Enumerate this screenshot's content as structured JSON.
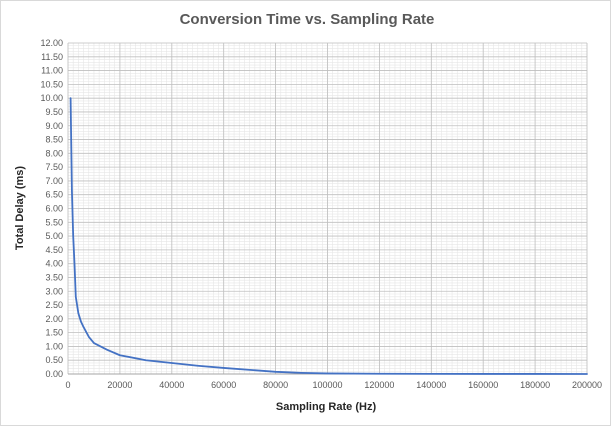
{
  "chart_data": {
    "type": "line",
    "title": "Conversion Time vs. Sampling Rate",
    "xlabel": "Sampling Rate (Hz)",
    "ylabel": "Total Delay (ms)",
    "xlim": [
      0,
      200000
    ],
    "ylim": [
      0,
      12
    ],
    "x_ticks": [
      0,
      20000,
      40000,
      60000,
      80000,
      100000,
      120000,
      140000,
      160000,
      180000,
      200000
    ],
    "x_tick_labels": [
      "0",
      "20000",
      "40000",
      "60000",
      "80000",
      "100000",
      "120000",
      "140000",
      "160000",
      "180000",
      "200000"
    ],
    "y_ticks": [
      0,
      0.5,
      1,
      1.5,
      2,
      2.5,
      3,
      3.5,
      4,
      4.5,
      5,
      5.5,
      6,
      6.5,
      7,
      7.5,
      8,
      8.5,
      9,
      9.5,
      10,
      10.5,
      11,
      11.5,
      12
    ],
    "y_tick_labels": [
      "0.00",
      "0.50",
      "1.00",
      "1.50",
      "2.00",
      "2.50",
      "3.00",
      "3.50",
      "4.00",
      "4.50",
      "5.00",
      "5.50",
      "6.00",
      "6.50",
      "7.00",
      "7.50",
      "8.00",
      "8.50",
      "9.00",
      "9.50",
      "10.00",
      "10.50",
      "11.00",
      "11.50",
      "12.00"
    ],
    "grid": true,
    "minor_grid": true,
    "series": [
      {
        "name": "Total Delay",
        "color": "#4472c4",
        "x": [
          1000,
          1500,
          2000,
          2500,
          3000,
          4000,
          5000,
          6000,
          8000,
          10000,
          15000,
          20000,
          30000,
          40000,
          50000,
          60000,
          70000,
          80000,
          90000,
          100000,
          120000,
          140000,
          160000,
          180000,
          200000
        ],
        "y": [
          10.0,
          6.67,
          5.0,
          4.0,
          2.8,
          2.2,
          1.9,
          1.7,
          1.35,
          1.12,
          0.88,
          0.68,
          0.5,
          0.4,
          0.3,
          0.22,
          0.15,
          0.08,
          0.04,
          0.02,
          0.01,
          0.005,
          0.003,
          0.002,
          0.001
        ]
      }
    ]
  }
}
